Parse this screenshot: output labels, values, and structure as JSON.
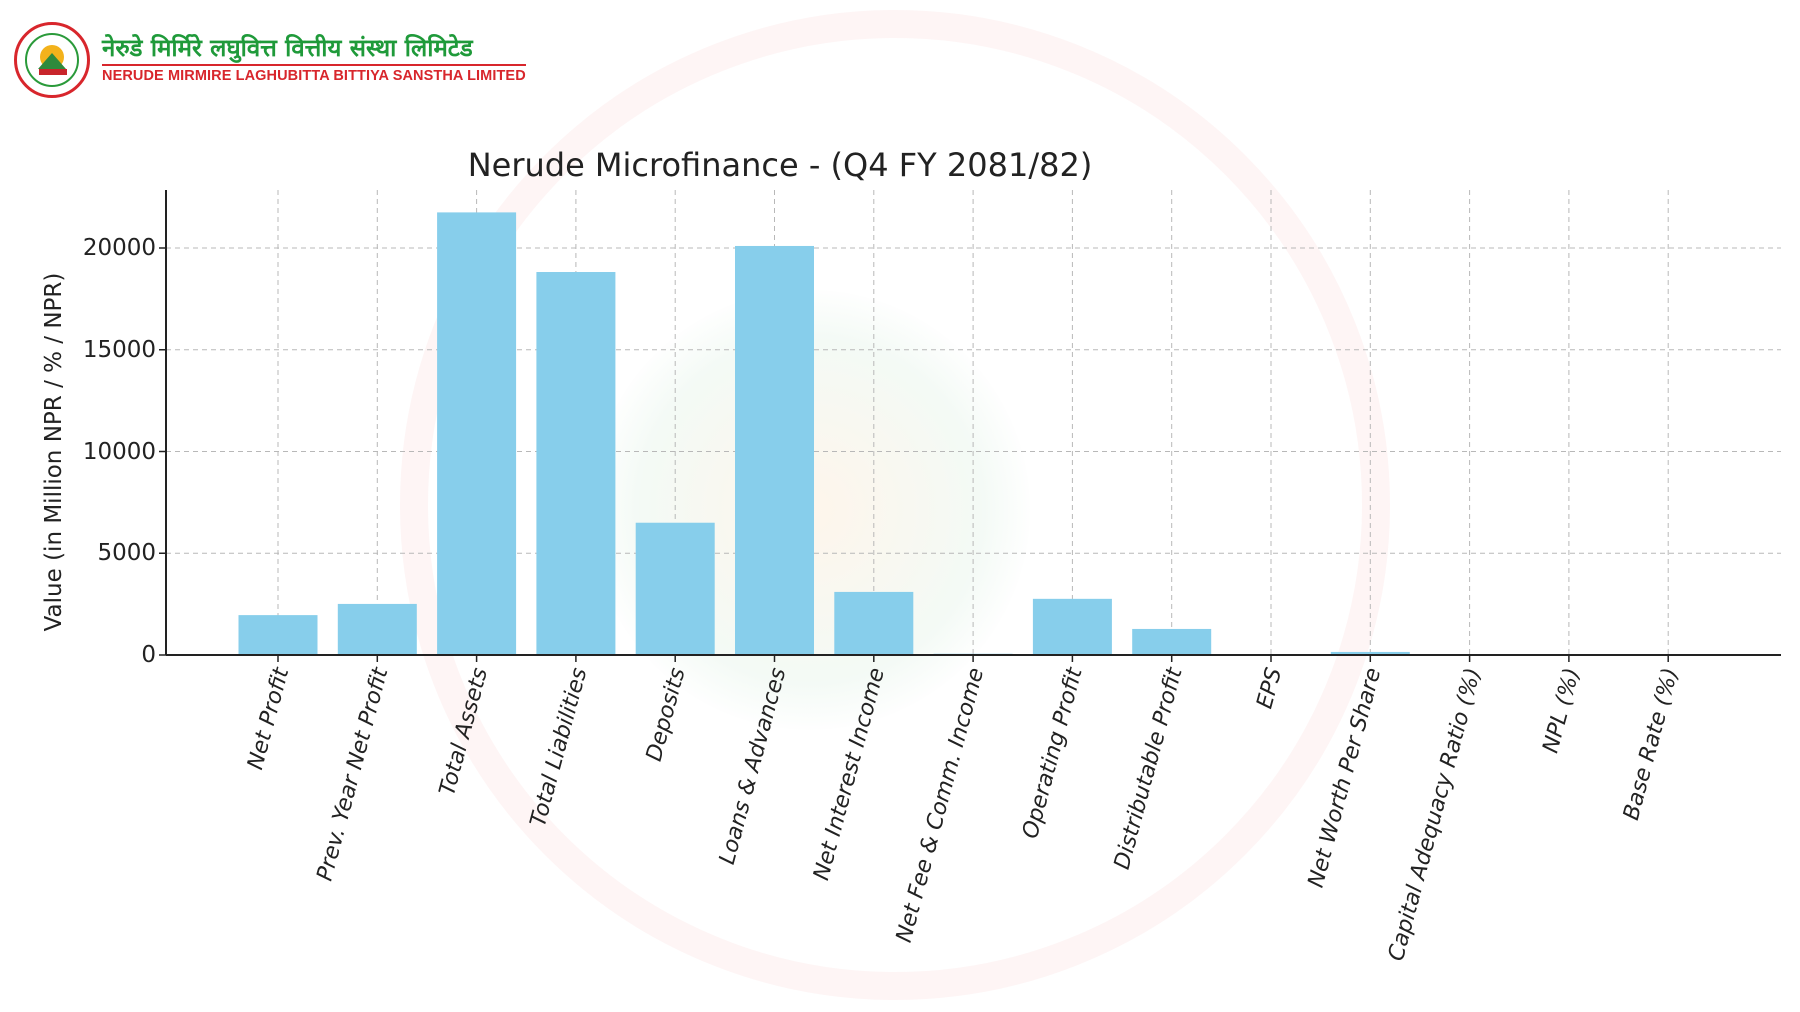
{
  "header": {
    "logo_icon": "nerude-mirmire-logo-icon",
    "name_nepali": "नेरुडे मिर्मिरे लघुवित्त वित्तीय संस्था लिमिटेड",
    "name_english": "NERUDE MIRMIRE LAGHUBITTA BITTIYA SANSTHA LIMITED"
  },
  "colors": {
    "bar": "#87CEEB",
    "axis": "#222222",
    "grid": "#b8b8b8",
    "brand_green": "#1f9a3a",
    "brand_red": "#d8262c"
  },
  "chart_data": {
    "type": "bar",
    "title": "Nerude Microfinance -  (Q4 FY 2081/82)",
    "xlabel": "",
    "ylabel": "Value (in Million NPR / % / NPR)",
    "ylim": [
      0,
      23000
    ],
    "yticks": [
      0,
      5000,
      10000,
      15000,
      20000
    ],
    "grid": true,
    "legend": null,
    "categories": [
      "Net Profit",
      "Prev. Year Net Profit",
      "Total Assets",
      "Total Liabilities",
      "Deposits",
      "Loans & Advances",
      "Net Interest Income",
      "Net Fee & Comm. Income",
      "Operating Profit",
      "Distributable Profit",
      "EPS",
      "Net Worth Per Share",
      "Capital Adequacy Ratio (%)",
      "NPL (%)",
      "Base Rate (%)"
    ],
    "values": [
      1960,
      2510,
      21750,
      18820,
      6500,
      20100,
      3100,
      60,
      2760,
      1280,
      30,
      150,
      12,
      5,
      12
    ]
  }
}
